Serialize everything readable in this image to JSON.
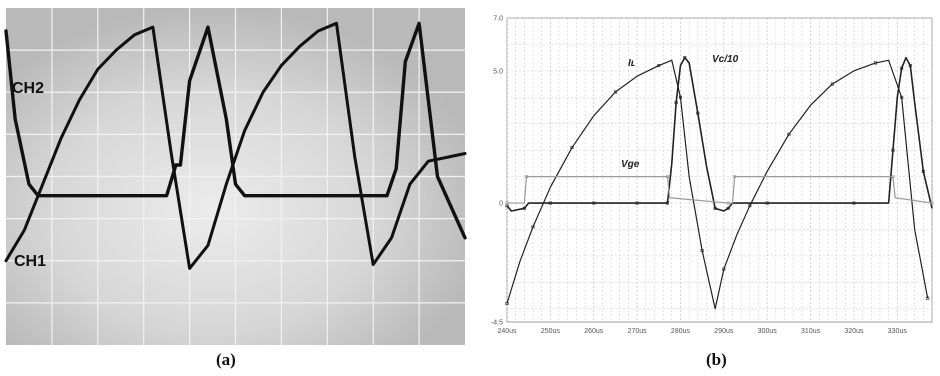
{
  "panels": {
    "a": {
      "label": "(a)",
      "ch1": "CH1",
      "ch2": "CH2"
    },
    "b": {
      "label": "(b)"
    }
  },
  "colors": {
    "scope_bg": "#cdcdcd",
    "scope_grid": "#f2f2f2",
    "trace": "#111111",
    "sim_grid": "#c8c8c8",
    "sim_trace": "#222222",
    "vge_trace": "#9a9a9a"
  },
  "chart_data": [
    {
      "type": "line",
      "panel": "(a)",
      "title": "",
      "series": [
        {
          "name": "CH1",
          "x": [
            0,
            4,
            8,
            12,
            16,
            20,
            24,
            28,
            32,
            36,
            40,
            44,
            48,
            52,
            56,
            60,
            64,
            68,
            72,
            76,
            80,
            84,
            88,
            92,
            96,
            100
          ],
          "y": [
            -2.2,
            -1.4,
            -0.2,
            1.0,
            2.0,
            2.8,
            3.3,
            3.7,
            3.9,
            0.6,
            -2.4,
            -1.8,
            -0.2,
            1.2,
            2.2,
            2.9,
            3.4,
            3.8,
            4.0,
            0.5,
            -2.3,
            -1.6,
            -0.2,
            0.4,
            0.5,
            0.6
          ]
        },
        {
          "name": "CH2",
          "x": [
            0,
            2,
            5,
            7,
            10,
            20,
            30,
            35,
            37,
            38,
            40,
            44,
            48,
            50,
            52,
            54,
            58,
            62,
            70,
            80,
            83,
            85,
            87,
            90,
            92,
            94,
            100
          ],
          "y": [
            3.8,
            1.5,
            -0.2,
            -0.5,
            -0.5,
            -0.5,
            -0.5,
            -0.5,
            0.3,
            0.3,
            2.5,
            3.9,
            1.5,
            -0.2,
            -0.5,
            -0.5,
            -0.5,
            -0.5,
            -0.5,
            -0.5,
            -0.5,
            0.2,
            3.0,
            4.0,
            2.0,
            0.0,
            -1.6
          ]
        }
      ],
      "grid": true
    },
    {
      "type": "line",
      "panel": "(b)",
      "title": "",
      "xlabel": "",
      "ylabel": "",
      "xlim": [
        240,
        338
      ],
      "ylim": [
        -4.5,
        7.0
      ],
      "ytick_labels": [
        "7.0",
        "5.0",
        "0",
        "-4.5"
      ],
      "ytick_values": [
        7.0,
        5.0,
        0,
        -4.5
      ],
      "xtick_labels": [
        "240us",
        "250us",
        "260us",
        "270us",
        "280us",
        "290us",
        "300us",
        "310us",
        "320us",
        "330us"
      ],
      "xtick_values": [
        240,
        250,
        260,
        270,
        280,
        290,
        300,
        310,
        320,
        330
      ],
      "series": [
        {
          "name": "Iʟ",
          "x": [
            240,
            243,
            246,
            250,
            255,
            260,
            265,
            270,
            275,
            278,
            280,
            282,
            285,
            288,
            290,
            293,
            296,
            300,
            305,
            310,
            315,
            320,
            325,
            328,
            331,
            334,
            337
          ],
          "y": [
            -3.8,
            -2.2,
            -0.9,
            0.6,
            2.1,
            3.3,
            4.2,
            4.8,
            5.2,
            5.4,
            4.0,
            1.0,
            -1.8,
            -4.0,
            -2.5,
            -1.2,
            -0.1,
            1.2,
            2.6,
            3.7,
            4.5,
            5.0,
            5.3,
            5.4,
            4.0,
            -1.0,
            -3.6
          ]
        },
        {
          "name": "Vc/10",
          "x": [
            240,
            241,
            244,
            245,
            250,
            255,
            260,
            265,
            270,
            275,
            277,
            278,
            279,
            280,
            281,
            282,
            284,
            286,
            288,
            290,
            291,
            292,
            300,
            310,
            320,
            328,
            329,
            330,
            331,
            332,
            333,
            334,
            336,
            338
          ],
          "y": [
            -0.1,
            -0.3,
            -0.2,
            0,
            0,
            0,
            0,
            0,
            0,
            0,
            0,
            1.5,
            3.8,
            5.2,
            5.5,
            5.3,
            3.4,
            1.4,
            -0.2,
            -0.3,
            -0.2,
            0,
            0,
            0,
            0,
            0,
            2.0,
            4.0,
            5.1,
            5.5,
            5.2,
            3.8,
            1.2,
            -0.2
          ]
        },
        {
          "name": "Vge",
          "x": [
            240,
            244,
            244.5,
            276,
            277,
            277.5,
            291,
            292,
            292.5,
            328,
            329,
            329.5,
            338
          ],
          "y": [
            0,
            0,
            1.0,
            1.0,
            1.0,
            0.2,
            0,
            0,
            1.0,
            1.0,
            1.0,
            0.2,
            0
          ]
        }
      ],
      "grid": true
    }
  ]
}
